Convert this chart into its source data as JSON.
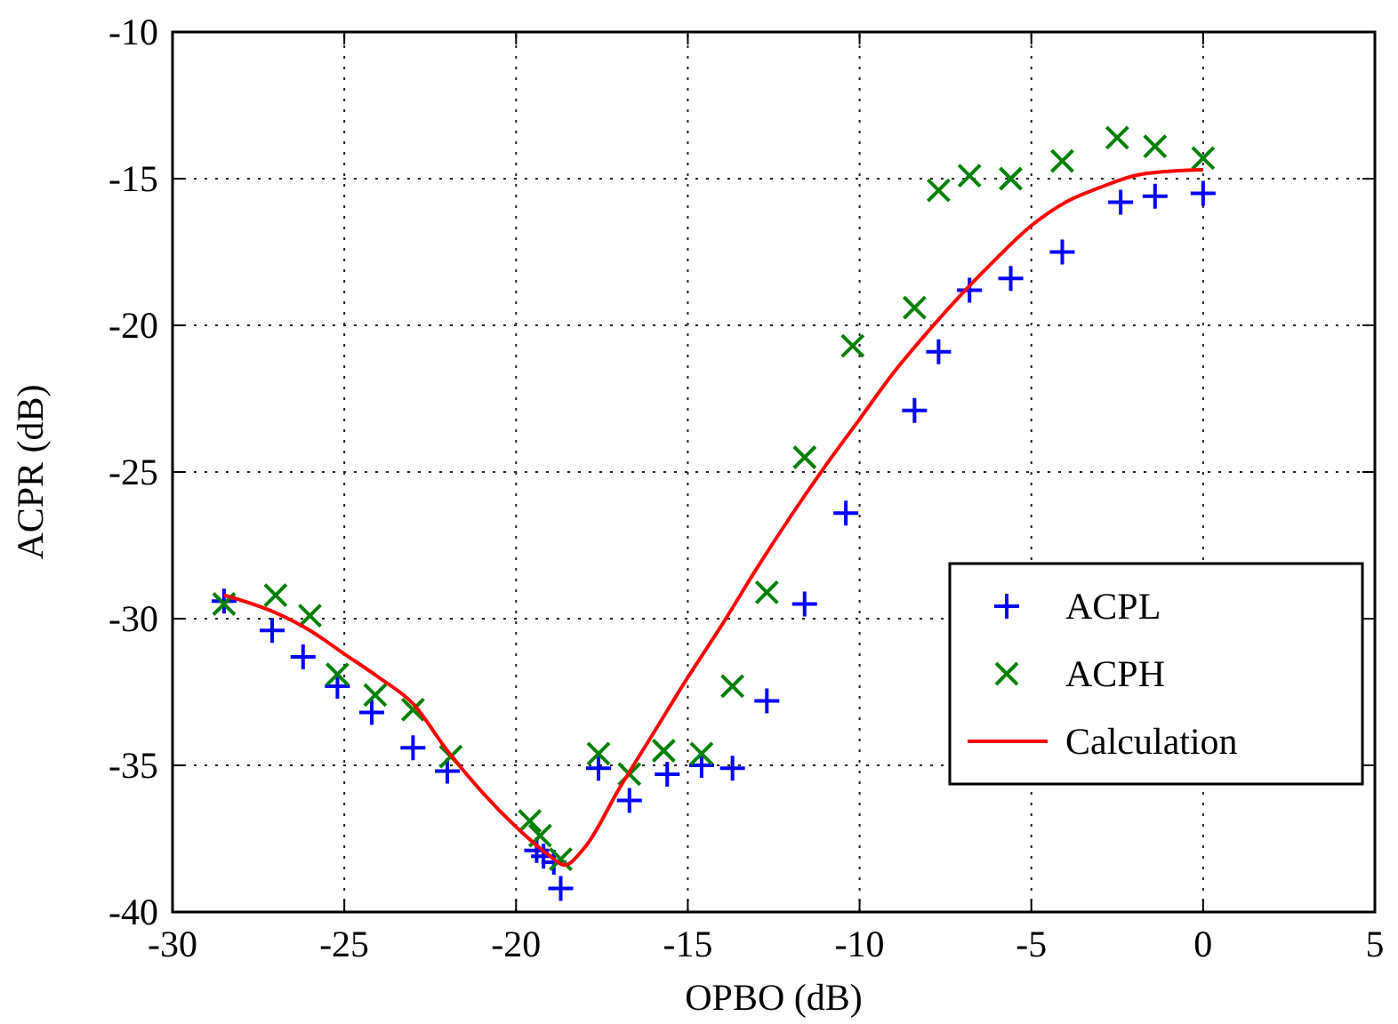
{
  "chart_data": {
    "type": "scatter",
    "xlabel": "OPBO (dB)",
    "ylabel": "ACPR (dB)",
    "xlim": [
      -30,
      5
    ],
    "xticks": [
      -30,
      -25,
      -20,
      -15,
      -10,
      -5,
      0,
      5
    ],
    "ylim": [
      -40,
      -10
    ],
    "yticks": [
      -40,
      -35,
      -30,
      -25,
      -20,
      -15,
      -10
    ],
    "grid": true,
    "legend": "bottom right",
    "series": [
      {
        "name": "ACPL",
        "color": "#0000ff",
        "marker": "plus",
        "x": [
          -28.5,
          -27.1,
          -26.2,
          -25.2,
          -24.2,
          -23.0,
          -22.0,
          -19.4,
          -19.2,
          -18.9,
          -18.7,
          -17.6,
          -16.7,
          -15.6,
          -14.6,
          -13.7,
          -12.7,
          -11.6,
          -10.4,
          -8.4,
          -7.7,
          -6.8,
          -5.6,
          -4.1,
          -2.4,
          -1.4,
          0
        ],
        "values": [
          -29.4,
          -30.4,
          -31.3,
          -32.3,
          -33.2,
          -34.4,
          -35.2,
          -37.9,
          -38.1,
          -38.3,
          -39.2,
          -35.1,
          -36.2,
          -35.3,
          -35.0,
          -35.1,
          -32.8,
          -29.5,
          -26.4,
          -22.9,
          -20.9,
          -18.8,
          -18.4,
          -17.5,
          -15.8,
          -15.6,
          -15.5
        ]
      },
      {
        "name": "ACPH",
        "color": "#008000",
        "marker": "cross",
        "x": [
          -28.5,
          -27.0,
          -26.0,
          -25.2,
          -24.1,
          -23.0,
          -21.9,
          -19.6,
          -19.3,
          -18.7,
          -17.6,
          -16.7,
          -15.7,
          -14.6,
          -13.7,
          -12.7,
          -11.6,
          -10.2,
          -8.4,
          -7.7,
          -6.8,
          -5.6,
          -4.1,
          -2.5,
          -1.4,
          0
        ],
        "values": [
          -29.5,
          -29.2,
          -29.9,
          -31.9,
          -32.6,
          -33.1,
          -34.7,
          -36.9,
          -37.4,
          -38.2,
          -34.6,
          -35.3,
          -34.5,
          -34.6,
          -32.3,
          -29.1,
          -24.5,
          -20.7,
          -19.4,
          -15.4,
          -14.9,
          -15.0,
          -14.4,
          -13.6,
          -13.9,
          -14.3
        ]
      },
      {
        "name": "Calculation",
        "type": "line",
        "color": "#ff0000",
        "line_style": "solid",
        "x": [
          -28.5,
          -27,
          -26,
          -25,
          -24,
          -23,
          -22,
          -21,
          -20,
          -19,
          -18.6,
          -18,
          -17,
          -16,
          -15,
          -14,
          -13,
          -12,
          -11,
          -10,
          -9,
          -8,
          -7,
          -6,
          -5,
          -4,
          -3,
          -2,
          -1,
          0
        ],
        "values": [
          -29.2,
          -29.8,
          -30.4,
          -31.2,
          -32.0,
          -32.9,
          -34.5,
          -35.9,
          -37.1,
          -38.1,
          -38.4,
          -37.8,
          -35.8,
          -33.9,
          -32.0,
          -30.2,
          -28.3,
          -26.5,
          -24.8,
          -23.2,
          -21.6,
          -20.2,
          -18.9,
          -17.7,
          -16.6,
          -15.8,
          -15.3,
          -14.9,
          -14.75,
          -14.7
        ]
      }
    ]
  }
}
